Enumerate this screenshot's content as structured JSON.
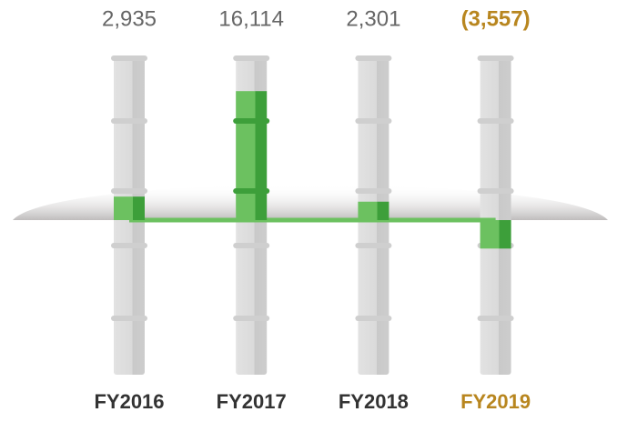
{
  "chart_data": {
    "type": "bar",
    "categories": [
      "FY2016",
      "FY2017",
      "FY2018",
      "FY2019"
    ],
    "values": [
      2935,
      16114,
      2301,
      -3557
    ],
    "value_labels": [
      "2,935",
      "16,114",
      "2,301",
      "(3,557)"
    ],
    "color": "#6cc160",
    "label_colors": [
      "#333333",
      "#333333",
      "#333333",
      "#b8861f"
    ],
    "value_label_colors": [
      "#666666",
      "#666666",
      "#666666",
      "#b8861f"
    ]
  }
}
